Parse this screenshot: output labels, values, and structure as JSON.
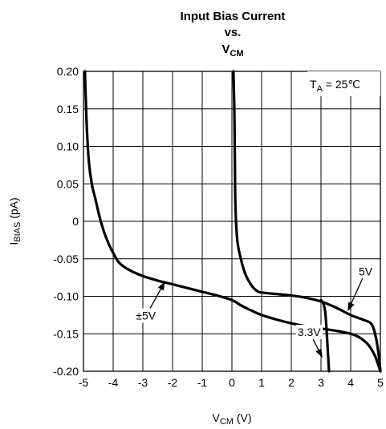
{
  "chart_data": {
    "type": "line",
    "title": {
      "line1": "Input Bias Current",
      "line2": "vs.",
      "line3_main": "V",
      "line3_sub": "CM"
    },
    "xlabel": {
      "main": "V",
      "sub": "CM",
      "suffix": " (V)"
    },
    "ylabel": {
      "main": "I",
      "sub": "BIAS",
      "suffix": " (pA)"
    },
    "xlim": [
      -5,
      5
    ],
    "ylim": [
      -0.2,
      0.2
    ],
    "xticks": [
      -5,
      -4,
      -3,
      -2,
      -1,
      0,
      1,
      2,
      3,
      4,
      5
    ],
    "xtick_labels": [
      "-5",
      "-4",
      "-3",
      "-2",
      "-1",
      "0",
      "1",
      "2",
      "3",
      "4",
      "5"
    ],
    "yticks": [
      0.2,
      0.15,
      0.1,
      0.05,
      0,
      -0.05,
      -0.1,
      -0.15,
      -0.2
    ],
    "ytick_labels": [
      "0.20",
      "0.15",
      "0.10",
      "0.05",
      "0",
      "-0.05",
      "-0.10",
      "-0.15",
      "-0.20"
    ],
    "grid": true,
    "annotation_temp": {
      "main": "T",
      "sub": "A",
      "suffix": " = 25℃"
    },
    "series": [
      {
        "name": "±5V",
        "x": [
          -4.95,
          -4.92,
          -4.88,
          -4.82,
          -4.72,
          -4.6,
          -4.45,
          -4.3,
          -4.15,
          -4.0,
          -3.8,
          -3.5,
          -3.0,
          -2.5,
          -2.0,
          -1.5,
          -1.0,
          -0.5,
          0.0,
          0.3,
          0.6,
          1.0,
          1.5,
          2.0,
          2.5,
          3.0,
          3.5,
          4.0,
          4.3,
          4.6,
          4.8,
          4.9,
          5.0
        ],
        "y": [
          0.2,
          0.16,
          0.12,
          0.08,
          0.05,
          0.03,
          0.005,
          -0.015,
          -0.03,
          -0.042,
          -0.055,
          -0.064,
          -0.073,
          -0.079,
          -0.084,
          -0.089,
          -0.094,
          -0.099,
          -0.105,
          -0.112,
          -0.118,
          -0.125,
          -0.131,
          -0.136,
          -0.14,
          -0.143,
          -0.146,
          -0.15,
          -0.155,
          -0.165,
          -0.178,
          -0.188,
          -0.2
        ]
      },
      {
        "name": "5V",
        "x": [
          0.05,
          0.08,
          0.1,
          0.12,
          0.18,
          0.3,
          0.45,
          0.65,
          0.85,
          1.0,
          1.5,
          2.0,
          2.5,
          3.0,
          3.5,
          4.0,
          4.4,
          4.7,
          4.85,
          4.95,
          5.0
        ],
        "y": [
          0.2,
          0.15,
          0.08,
          0.02,
          -0.025,
          -0.05,
          -0.07,
          -0.085,
          -0.093,
          -0.095,
          -0.097,
          -0.099,
          -0.102,
          -0.107,
          -0.115,
          -0.125,
          -0.131,
          -0.137,
          -0.155,
          -0.18,
          -0.2
        ]
      },
      {
        "name": "3.3V",
        "x": [
          3.0,
          3.08,
          3.14,
          3.18,
          3.21,
          3.24,
          3.27
        ],
        "y": [
          -0.105,
          -0.11,
          -0.12,
          -0.14,
          -0.16,
          -0.18,
          -0.2
        ]
      }
    ],
    "labels": [
      {
        "text": "±5V",
        "x": -2.9,
        "y": -0.131,
        "arrow_to": [
          -2.25,
          -0.08
        ]
      },
      {
        "text": "5V",
        "x": 4.5,
        "y": -0.072,
        "arrow_to": [
          3.9,
          -0.12
        ]
      },
      {
        "text": "3.3V",
        "x": 2.6,
        "y": -0.153,
        "arrow_to": [
          3.05,
          -0.182
        ]
      }
    ]
  }
}
